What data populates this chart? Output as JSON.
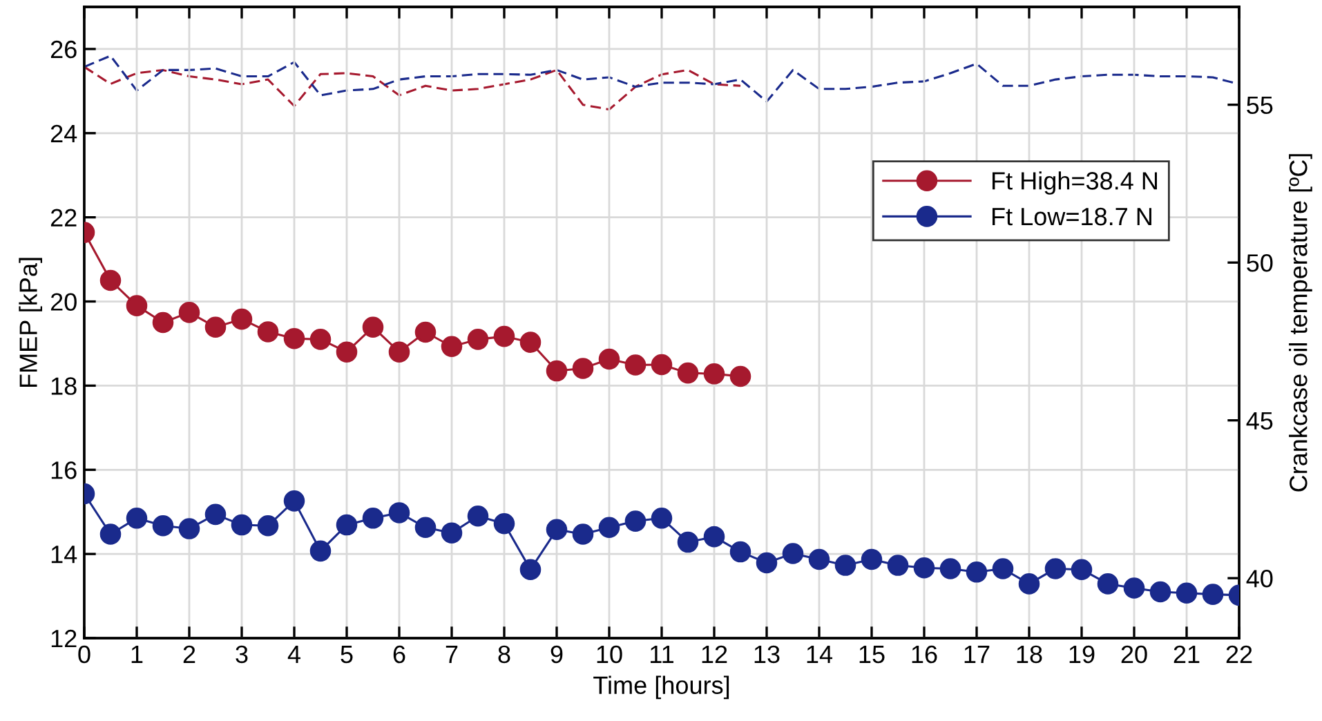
{
  "chart_data": {
    "type": "line",
    "xlabel": "Time [hours]",
    "ylabel": "FMEP [kPa]",
    "y2label": "Crankcase oil temperature [ºC]",
    "xlim": [
      0,
      22
    ],
    "xticks": [
      0,
      1,
      2,
      3,
      4,
      5,
      6,
      7,
      8,
      9,
      10,
      11,
      12,
      13,
      14,
      15,
      16,
      17,
      18,
      19,
      20,
      21,
      22
    ],
    "ylim": [
      12,
      27
    ],
    "yticks": [
      12,
      14,
      16,
      18,
      20,
      22,
      24,
      26
    ],
    "y2lim": [
      38.1,
      58.1
    ],
    "y2ticks": [
      40,
      45,
      50,
      55
    ],
    "grid": true,
    "legend": "top right",
    "series": [
      {
        "name": "Ft High=38.4 N",
        "color": "#a6192e",
        "marker": "circle",
        "line_style": "solid",
        "x": [
          0,
          0.5,
          1,
          1.5,
          2,
          2.5,
          3,
          3.5,
          4,
          4.5,
          5,
          5.5,
          6,
          6.5,
          7,
          7.5,
          8,
          8.5,
          9,
          9.5,
          10,
          10.5,
          11,
          11.5,
          12,
          12.5
        ],
        "values": [
          21.64,
          20.5,
          19.9,
          19.5,
          19.74,
          19.39,
          19.58,
          19.28,
          19.12,
          19.1,
          18.8,
          19.39,
          18.8,
          19.27,
          18.93,
          19.1,
          19.17,
          19.03,
          18.35,
          18.41,
          18.63,
          18.49,
          18.5,
          18.3,
          18.28,
          18.22
        ]
      },
      {
        "name": "Ft Low=18.7 N",
        "color": "#1a2a8c",
        "marker": "circle",
        "line_style": "solid",
        "x": [
          0,
          0.5,
          1,
          1.5,
          2,
          2.5,
          3,
          3.5,
          4,
          4.5,
          5,
          5.5,
          6,
          6.5,
          7,
          7.5,
          8,
          8.5,
          9,
          9.5,
          10,
          10.5,
          11,
          11.5,
          12,
          12.5,
          13,
          13.5,
          14,
          14.5,
          15,
          15.5,
          16,
          16.5,
          17,
          17.5,
          18,
          18.5,
          19,
          19.5,
          20,
          20.5,
          21,
          21.5,
          22
        ],
        "values": [
          15.43,
          14.47,
          14.85,
          14.67,
          14.6,
          14.94,
          14.69,
          14.67,
          15.26,
          14.07,
          14.69,
          14.85,
          14.98,
          14.63,
          14.5,
          14.9,
          14.72,
          13.63,
          14.58,
          14.47,
          14.63,
          14.78,
          14.85,
          14.28,
          14.41,
          14.05,
          13.79,
          14.01,
          13.87,
          13.73,
          13.87,
          13.73,
          13.67,
          13.65,
          13.57,
          13.65,
          13.29,
          13.65,
          13.63,
          13.29,
          13.19,
          13.1,
          13.07,
          13.04,
          13.02
        ]
      },
      {
        "color": "#a6192e",
        "marker": "none",
        "line_style": "dashed",
        "axis": "y2",
        "x": [
          0,
          0.5,
          1,
          1.5,
          2,
          2.5,
          3,
          3.5,
          4,
          4.5,
          5,
          5.5,
          6,
          6.5,
          7,
          7.5,
          8,
          8.5,
          9,
          9.5,
          10,
          10.5,
          11,
          11.5,
          12,
          12.5
        ],
        "values": [
          56.2,
          55.66,
          56.0,
          56.1,
          55.9,
          55.8,
          55.65,
          55.8,
          54.96,
          55.97,
          56.0,
          55.9,
          55.3,
          55.6,
          55.45,
          55.5,
          55.65,
          55.8,
          56.1,
          55.0,
          54.85,
          55.57,
          55.96,
          56.1,
          55.65,
          55.6
        ]
      },
      {
        "color": "#1a2a8c",
        "marker": "none",
        "line_style": "dashed",
        "axis": "y2",
        "x": [
          0,
          0.5,
          1,
          1.5,
          2,
          2.5,
          3,
          3.5,
          4,
          4.5,
          5,
          5.5,
          6,
          6.5,
          7,
          7.5,
          8,
          8.5,
          9,
          9.5,
          10,
          10.5,
          11,
          11.5,
          12,
          12.5,
          13,
          13.5,
          14,
          14.5,
          15,
          15.5,
          16,
          16.5,
          17,
          17.5,
          18,
          18.5,
          19,
          19.5,
          20,
          20.5,
          21,
          21.5,
          22
        ],
        "values": [
          56.2,
          56.55,
          55.45,
          56.1,
          56.1,
          56.15,
          55.9,
          55.9,
          56.35,
          55.3,
          55.45,
          55.5,
          55.8,
          55.9,
          55.9,
          55.97,
          55.97,
          55.95,
          56.1,
          55.8,
          55.87,
          55.57,
          55.7,
          55.7,
          55.65,
          55.8,
          55.1,
          56.1,
          55.5,
          55.5,
          55.57,
          55.7,
          55.74,
          56.0,
          56.3,
          55.6,
          55.6,
          55.8,
          55.9,
          55.95,
          55.95,
          55.9,
          55.9,
          55.87,
          55.65
        ]
      }
    ]
  }
}
